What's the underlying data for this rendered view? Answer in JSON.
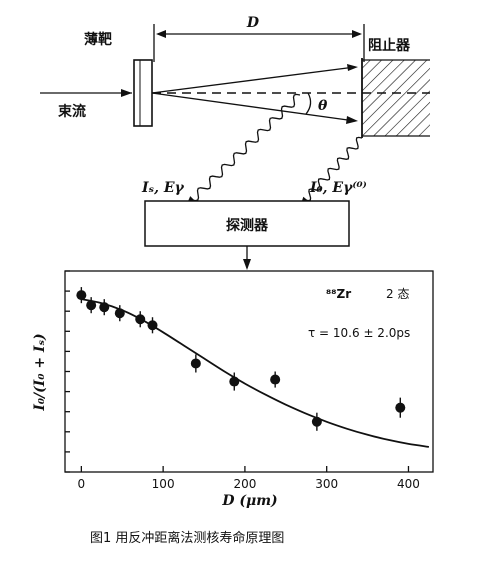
{
  "diagram": {
    "target_label": "薄靶",
    "beam_label": "束流",
    "stopper_label": "阻止器",
    "distance_label": "D",
    "angle_label": "θ",
    "shifted_gamma_label": "Iₛ, Eγ",
    "unshifted_gamma_label": "I₀, Eγ⁽⁰⁾",
    "detector_label": "探测器"
  },
  "chart_data": {
    "type": "scatter",
    "nucleus_label": "⁸⁸Zr",
    "state_label": "2 态",
    "annotation": "τ = 10.6 ± 2.0ps",
    "xlabel": "D (μm)",
    "ylabel": "I₀/(I₀ + Iₛ)",
    "xlim": [
      -20,
      430
    ],
    "ylim": [
      0,
      10
    ],
    "xticks": [
      0,
      100,
      200,
      300,
      400
    ],
    "grid": false,
    "points": [
      {
        "x": 0,
        "y": 8.8,
        "err": 0.4
      },
      {
        "x": 12,
        "y": 8.3,
        "err": 0.4
      },
      {
        "x": 28,
        "y": 8.2,
        "err": 0.4
      },
      {
        "x": 47,
        "y": 7.9,
        "err": 0.4
      },
      {
        "x": 72,
        "y": 7.6,
        "err": 0.4
      },
      {
        "x": 87,
        "y": 7.3,
        "err": 0.4
      },
      {
        "x": 140,
        "y": 5.4,
        "err": 0.45
      },
      {
        "x": 187,
        "y": 4.5,
        "err": 0.45
      },
      {
        "x": 237,
        "y": 4.6,
        "err": 0.4
      },
      {
        "x": 288,
        "y": 2.5,
        "err": 0.45
      },
      {
        "x": 390,
        "y": 3.2,
        "err": 0.5
      }
    ],
    "fit_curve": {
      "x": [
        0,
        25,
        50,
        75,
        100,
        125,
        150,
        175,
        200,
        225,
        250,
        275,
        300,
        325,
        350,
        375,
        400,
        425
      ],
      "y": [
        8.6,
        8.4,
        8.05,
        7.55,
        6.95,
        6.3,
        5.65,
        5.0,
        4.4,
        3.85,
        3.35,
        2.9,
        2.5,
        2.15,
        1.85,
        1.6,
        1.4,
        1.25
      ]
    }
  },
  "caption": "图1  用反冲距离法测核寿命原理图"
}
